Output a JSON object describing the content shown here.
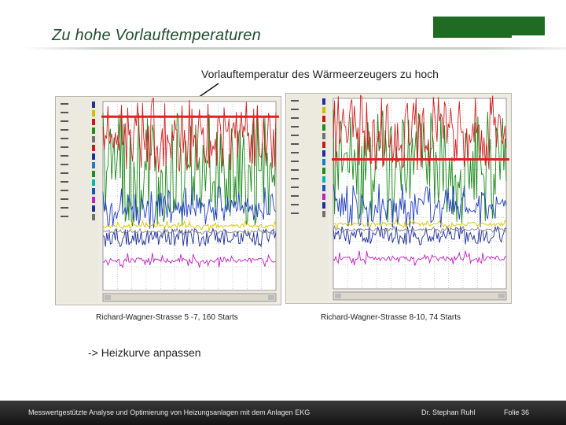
{
  "slide": {
    "title": "Zu hohe Vorlauftemperaturen",
    "annotation": "Vorlauftemperatur des Wärmeerzeugers zu hoch",
    "action_note": "-> Heizkurve anpassen",
    "brand_color": "#1f6b24"
  },
  "charts": [
    {
      "caption": "Richard-Wagner-Strasse 5 -7, 160 Starts",
      "marker_color": "#e02020"
    },
    {
      "caption": "Richard-Wagner-Strasse 8-10, 74 Starts",
      "marker_color": "#e02020"
    }
  ],
  "footer": {
    "left": "Messwertgestützte Analyse und Optimierung von Heizungsanlagen  mit dem Anlagen EKG",
    "author": "Dr. Stephan Ruhl",
    "page": "Folie 36"
  }
}
